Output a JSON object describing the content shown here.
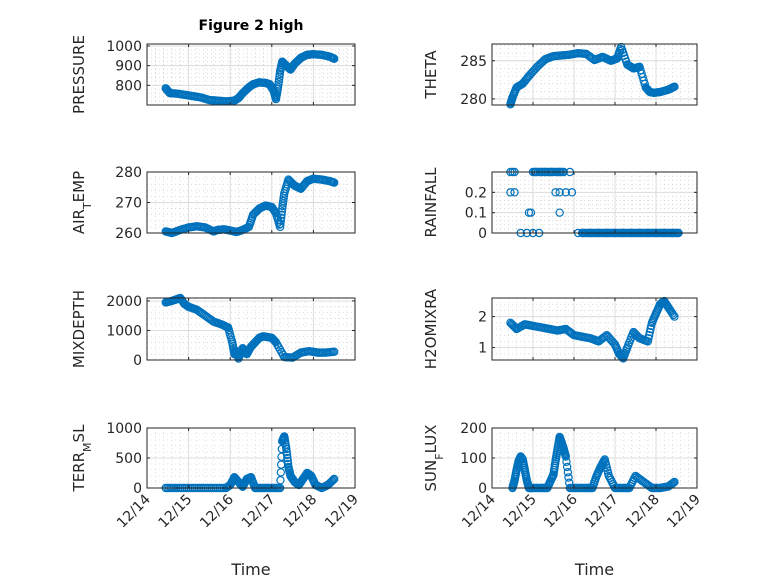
{
  "figure": {
    "title": "Figure 2 high",
    "marker_color": "#0072BD"
  },
  "chart_data": [
    {
      "type": "scatter",
      "name": "pressure",
      "title": "Figure 2 high",
      "ylabel": "PRESSURE",
      "ylabel_sub": null,
      "xlabel": "",
      "xlim": [
        0,
        5
      ],
      "ylim": [
        700,
        1010
      ],
      "yticks": [
        800,
        900,
        1000
      ],
      "ytick_labels": [
        "800",
        "900",
        "1000"
      ],
      "xticks": [
        0,
        1,
        2,
        3,
        4,
        5
      ],
      "xtick_labels": [
        "12/14",
        "12/15",
        "12/16",
        "12/17",
        "12/18",
        "12/19"
      ],
      "show_xtick_labels": false,
      "grid": true,
      "minor_grid": true,
      "x": [
        0.45,
        0.55,
        0.7,
        0.9,
        1.1,
        1.3,
        1.5,
        1.7,
        1.9,
        2.1,
        2.2,
        2.3,
        2.45,
        2.55,
        2.7,
        2.85,
        2.95,
        3.05,
        3.1,
        3.15,
        3.2,
        3.25,
        3.35,
        3.45,
        3.55,
        3.7,
        3.85,
        4.0,
        4.2,
        4.4,
        4.5
      ],
      "y": [
        785,
        760,
        758,
        752,
        745,
        738,
        725,
        722,
        718,
        722,
        735,
        760,
        790,
        805,
        815,
        812,
        805,
        770,
        730,
        790,
        870,
        920,
        900,
        880,
        910,
        940,
        955,
        958,
        955,
        945,
        935
      ]
    },
    {
      "type": "scatter",
      "name": "theta",
      "ylabel": "THETA",
      "ylabel_sub": null,
      "xlabel": "",
      "xlim": [
        0,
        5
      ],
      "ylim": [
        279.2,
        287.2
      ],
      "yticks": [
        280,
        285
      ],
      "ytick_labels": [
        "280",
        "285"
      ],
      "xticks": [
        0,
        1,
        2,
        3,
        4,
        5
      ],
      "xtick_labels": [
        "12/14",
        "12/15",
        "12/16",
        "12/17",
        "12/18",
        "12/19"
      ],
      "show_xtick_labels": false,
      "grid": true,
      "minor_grid": true,
      "x": [
        0.45,
        0.5,
        0.6,
        0.75,
        0.9,
        1.1,
        1.3,
        1.5,
        1.7,
        1.9,
        2.1,
        2.3,
        2.5,
        2.7,
        2.9,
        3.05,
        3.15,
        3.3,
        3.45,
        3.6,
        3.75,
        3.85,
        3.95,
        4.1,
        4.3,
        4.45
      ],
      "y": [
        279.3,
        280.2,
        281.5,
        282.0,
        283.0,
        284.2,
        285.2,
        285.6,
        285.7,
        285.8,
        286.0,
        285.9,
        285.1,
        285.5,
        285.0,
        285.3,
        286.8,
        284.5,
        284.0,
        284.2,
        281.5,
        280.9,
        280.8,
        280.9,
        281.2,
        281.6
      ]
    },
    {
      "type": "scatter",
      "name": "air-temp",
      "ylabel": "AIR",
      "ylabel_sub": "T",
      "ylabel_tail": "EMP",
      "xlabel": "",
      "xlim": [
        0,
        5
      ],
      "ylim": [
        260,
        280
      ],
      "yticks": [
        260,
        270,
        280
      ],
      "ytick_labels": [
        "260",
        "270",
        "280"
      ],
      "xticks": [
        0,
        1,
        2,
        3,
        4,
        5
      ],
      "xtick_labels": [
        "12/14",
        "12/15",
        "12/16",
        "12/17",
        "12/18",
        "12/19"
      ],
      "show_xtick_labels": false,
      "grid": true,
      "minor_grid": true,
      "x": [
        0.45,
        0.6,
        0.8,
        1.0,
        1.2,
        1.4,
        1.6,
        1.7,
        1.85,
        2.0,
        2.15,
        2.3,
        2.45,
        2.55,
        2.7,
        2.85,
        3.0,
        3.1,
        3.2,
        3.25,
        3.3,
        3.4,
        3.55,
        3.7,
        3.85,
        4.0,
        4.2,
        4.4,
        4.5
      ],
      "y": [
        260.5,
        260.0,
        261.0,
        261.8,
        262.2,
        261.8,
        260.5,
        261.0,
        261.2,
        260.8,
        260.3,
        261.0,
        262.0,
        266.0,
        268.0,
        269.0,
        268.5,
        266.5,
        262.0,
        268.0,
        273.0,
        277.5,
        275.5,
        274.5,
        277.0,
        277.8,
        277.5,
        277.0,
        276.5
      ]
    },
    {
      "type": "scatter",
      "name": "rainfall",
      "ylabel": "RAINFALL",
      "ylabel_sub": null,
      "xlabel": "",
      "xlim": [
        0,
        5
      ],
      "ylim": [
        0,
        0.3
      ],
      "yticks": [
        0,
        0.1,
        0.2
      ],
      "ytick_labels": [
        "0",
        "0.1",
        "0.2"
      ],
      "xticks": [
        0,
        1,
        2,
        3,
        4,
        5
      ],
      "xtick_labels": [
        "12/14",
        "12/15",
        "12/16",
        "12/17",
        "12/18",
        "12/19"
      ],
      "show_xtick_labels": false,
      "grid": true,
      "minor_grid": true,
      "x": [
        0.45,
        0.5,
        0.55,
        0.45,
        0.55,
        0.7,
        0.85,
        0.95,
        0.9,
        1.05,
        1.2,
        1.0,
        1.15,
        1.3,
        1.45,
        1.65,
        1.75,
        1.9,
        2.1,
        1.55,
        1.65,
        1.8,
        1.95,
        1.65,
        2.2,
        2.4,
        2.6,
        2.8,
        3.0,
        3.2,
        3.4,
        3.6,
        3.8,
        4.0,
        4.2,
        4.4,
        4.55
      ],
      "y": [
        0.3,
        0.3,
        0.3,
        0.2,
        0.2,
        0,
        0,
        0.1,
        0.1,
        0.3,
        0.3,
        0,
        0,
        0.3,
        0.3,
        0.3,
        0.3,
        0.3,
        0,
        0.2,
        0.2,
        0.2,
        0.2,
        0.1,
        0,
        0,
        0,
        0,
        0,
        0,
        0,
        0,
        0,
        0,
        0,
        0,
        0
      ]
    },
    {
      "type": "scatter",
      "name": "mixdepth",
      "ylabel": "MIXDEPTH",
      "ylabel_sub": null,
      "xlabel": "",
      "xlim": [
        0,
        5
      ],
      "ylim": [
        0,
        2100
      ],
      "yticks": [
        0,
        1000,
        2000
      ],
      "ytick_labels": [
        "0",
        "1000",
        "2000"
      ],
      "xticks": [
        0,
        1,
        2,
        3,
        4,
        5
      ],
      "xtick_labels": [
        "12/14",
        "12/15",
        "12/16",
        "12/17",
        "12/18",
        "12/19"
      ],
      "show_xtick_labels": false,
      "grid": true,
      "minor_grid": true,
      "x": [
        0.45,
        0.6,
        0.8,
        0.9,
        1.0,
        1.2,
        1.4,
        1.6,
        1.8,
        1.95,
        2.05,
        2.1,
        2.15,
        2.2,
        2.3,
        2.4,
        2.5,
        2.6,
        2.7,
        2.8,
        3.0,
        3.1,
        3.3,
        3.5,
        3.7,
        3.9,
        4.1,
        4.3,
        4.5
      ],
      "y": [
        1950,
        2000,
        2100,
        1900,
        1800,
        1700,
        1500,
        1300,
        1200,
        1100,
        600,
        200,
        300,
        50,
        400,
        200,
        450,
        600,
        750,
        800,
        750,
        600,
        100,
        80,
        250,
        300,
        250,
        250,
        280
      ]
    },
    {
      "type": "scatter",
      "name": "h2omixra",
      "ylabel": "H2OMIXRA",
      "ylabel_sub": null,
      "xlabel": "",
      "xlim": [
        0,
        5
      ],
      "ylim": [
        0.6,
        2.6
      ],
      "yticks": [
        1,
        2
      ],
      "ytick_labels": [
        "1",
        "2"
      ],
      "xticks": [
        0,
        1,
        2,
        3,
        4,
        5
      ],
      "xtick_labels": [
        "12/14",
        "12/15",
        "12/16",
        "12/17",
        "12/18",
        "12/19"
      ],
      "show_xtick_labels": false,
      "grid": true,
      "minor_grid": true,
      "x": [
        0.45,
        0.6,
        0.8,
        1.0,
        1.2,
        1.4,
        1.6,
        1.8,
        2.0,
        2.2,
        2.4,
        2.6,
        2.8,
        3.0,
        3.1,
        3.2,
        3.3,
        3.45,
        3.6,
        3.8,
        3.9,
        4.0,
        4.1,
        4.2,
        4.3,
        4.45
      ],
      "y": [
        1.8,
        1.6,
        1.75,
        1.7,
        1.65,
        1.6,
        1.55,
        1.6,
        1.4,
        1.35,
        1.3,
        1.2,
        1.4,
        1.1,
        0.8,
        0.65,
        1.0,
        1.5,
        1.3,
        1.2,
        1.8,
        2.1,
        2.4,
        2.5,
        2.3,
        2.0
      ]
    },
    {
      "type": "scatter",
      "name": "terr-msl",
      "ylabel": "TERR",
      "ylabel_sub": "M",
      "ylabel_tail": "SL",
      "xlabel": "Time",
      "xlim": [
        0,
        5
      ],
      "ylim": [
        0,
        1000
      ],
      "yticks": [
        0,
        500,
        1000
      ],
      "ytick_labels": [
        "0",
        "500",
        "1000"
      ],
      "xticks": [
        0,
        1,
        2,
        3,
        4,
        5
      ],
      "xtick_labels": [
        "12/14",
        "12/15",
        "12/16",
        "12/17",
        "12/18",
        "12/19"
      ],
      "show_xtick_labels": true,
      "grid": true,
      "minor_grid": true,
      "x": [
        0.45,
        0.7,
        1.0,
        1.3,
        1.6,
        1.9,
        2.0,
        2.1,
        2.2,
        2.3,
        2.4,
        2.5,
        2.6,
        2.8,
        3.0,
        3.2,
        3.25,
        3.3,
        3.35,
        3.4,
        3.45,
        3.55,
        3.65,
        3.75,
        3.85,
        3.95,
        4.05,
        4.2,
        4.35,
        4.5
      ],
      "y": [
        0,
        0,
        0,
        0,
        0,
        0,
        50,
        180,
        100,
        20,
        150,
        180,
        0,
        0,
        0,
        0,
        780,
        860,
        650,
        350,
        200,
        100,
        50,
        150,
        250,
        200,
        50,
        0,
        50,
        150
      ]
    },
    {
      "type": "scatter",
      "name": "sun-flux",
      "ylabel": "SUN",
      "ylabel_sub": "F",
      "ylabel_tail": "LUX",
      "xlabel": "Time",
      "xlim": [
        0,
        5
      ],
      "ylim": [
        0,
        200
      ],
      "yticks": [
        0,
        100,
        200
      ],
      "ytick_labels": [
        "0",
        "100",
        "200"
      ],
      "xticks": [
        0,
        1,
        2,
        3,
        4,
        5
      ],
      "xtick_labels": [
        "12/14",
        "12/15",
        "12/16",
        "12/17",
        "12/18",
        "12/19"
      ],
      "show_xtick_labels": true,
      "grid": true,
      "minor_grid": true,
      "x": [
        0.5,
        0.55,
        0.6,
        0.65,
        0.7,
        0.75,
        0.8,
        0.85,
        0.9,
        1.0,
        1.2,
        1.35,
        1.45,
        1.5,
        1.55,
        1.6,
        1.65,
        1.7,
        1.75,
        1.8,
        1.9,
        2.1,
        2.3,
        2.45,
        2.55,
        2.65,
        2.75,
        2.85,
        3.0,
        3.2,
        3.35,
        3.5,
        3.7,
        3.9,
        4.1,
        4.3,
        4.45
      ],
      "y": [
        0,
        25,
        60,
        90,
        105,
        95,
        60,
        25,
        0,
        0,
        0,
        0,
        30,
        45,
        90,
        130,
        170,
        150,
        130,
        105,
        0,
        0,
        0,
        0,
        40,
        70,
        95,
        40,
        0,
        0,
        0,
        40,
        20,
        0,
        0,
        5,
        20
      ]
    }
  ]
}
